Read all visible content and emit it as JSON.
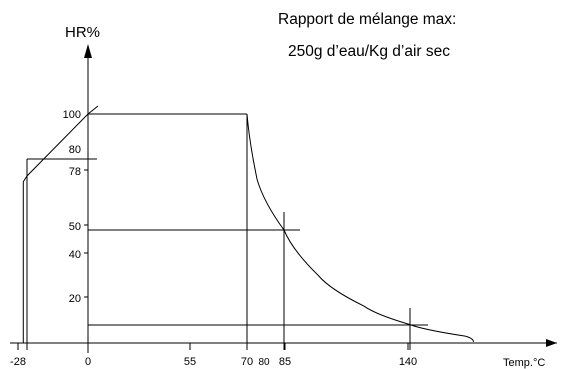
{
  "chart_data": {
    "type": "line",
    "title_lines": [
      "Rapport de mélange max:",
      "250g d’eau/Kg d’air sec"
    ],
    "ylabel": "HR%",
    "xlabel": "Temp.°C",
    "x_ticks": [
      {
        "label": "-28",
        "value": -28
      },
      {
        "label": "0",
        "value": 0
      },
      {
        "label": "55",
        "value": 55
      },
      {
        "label": "70",
        "value": 70
      },
      {
        "label": "80",
        "value": 80
      },
      {
        "label": "85",
        "value": 85
      },
      {
        "label": "140",
        "value": 140
      }
    ],
    "y_ticks": [
      {
        "label": "100",
        "value": 100
      },
      {
        "label": "80",
        "value": 80
      },
      {
        "label": "78",
        "value": 78
      },
      {
        "label": "50",
        "value": 50
      },
      {
        "label": "40",
        "value": 40
      },
      {
        "label": "20",
        "value": 20
      }
    ],
    "envelope": {
      "points": [
        {
          "x": -30,
          "y": 0
        },
        {
          "x": -30,
          "y": 75
        },
        {
          "x": -28,
          "y": 78
        },
        {
          "x": 0,
          "y": 100
        },
        {
          "x": 70,
          "y": 100
        }
      ],
      "curve_from_70": [
        {
          "x": 70,
          "y": 100
        },
        {
          "x": 76,
          "y": 76
        },
        {
          "x": 85,
          "y": 50
        },
        {
          "x": 100,
          "y": 30
        },
        {
          "x": 120,
          "y": 16
        },
        {
          "x": 140,
          "y": 8
        },
        {
          "x": 160,
          "y": 3
        }
      ]
    },
    "guides": {
      "h78": {
        "from_x": 0,
        "to_x": 0,
        "y": 78
      },
      "h50": {
        "from_x": 0,
        "to_x": 90,
        "y": 50
      },
      "h8": {
        "from_x": 0,
        "to_x": 145,
        "y": 8
      },
      "v85": {
        "x": 85,
        "from_y": 0,
        "to_y": 60
      },
      "v140": {
        "x": 140,
        "from_y": 0,
        "to_y": 12
      },
      "v70": {
        "x": 70,
        "from_y": 0,
        "to_y": 100
      },
      "vNeg28": {
        "x": -28,
        "from_y": 0,
        "to_y": 80
      }
    },
    "xlim": [
      -35,
      190
    ],
    "ylim": [
      0,
      120
    ],
    "grid": false
  }
}
